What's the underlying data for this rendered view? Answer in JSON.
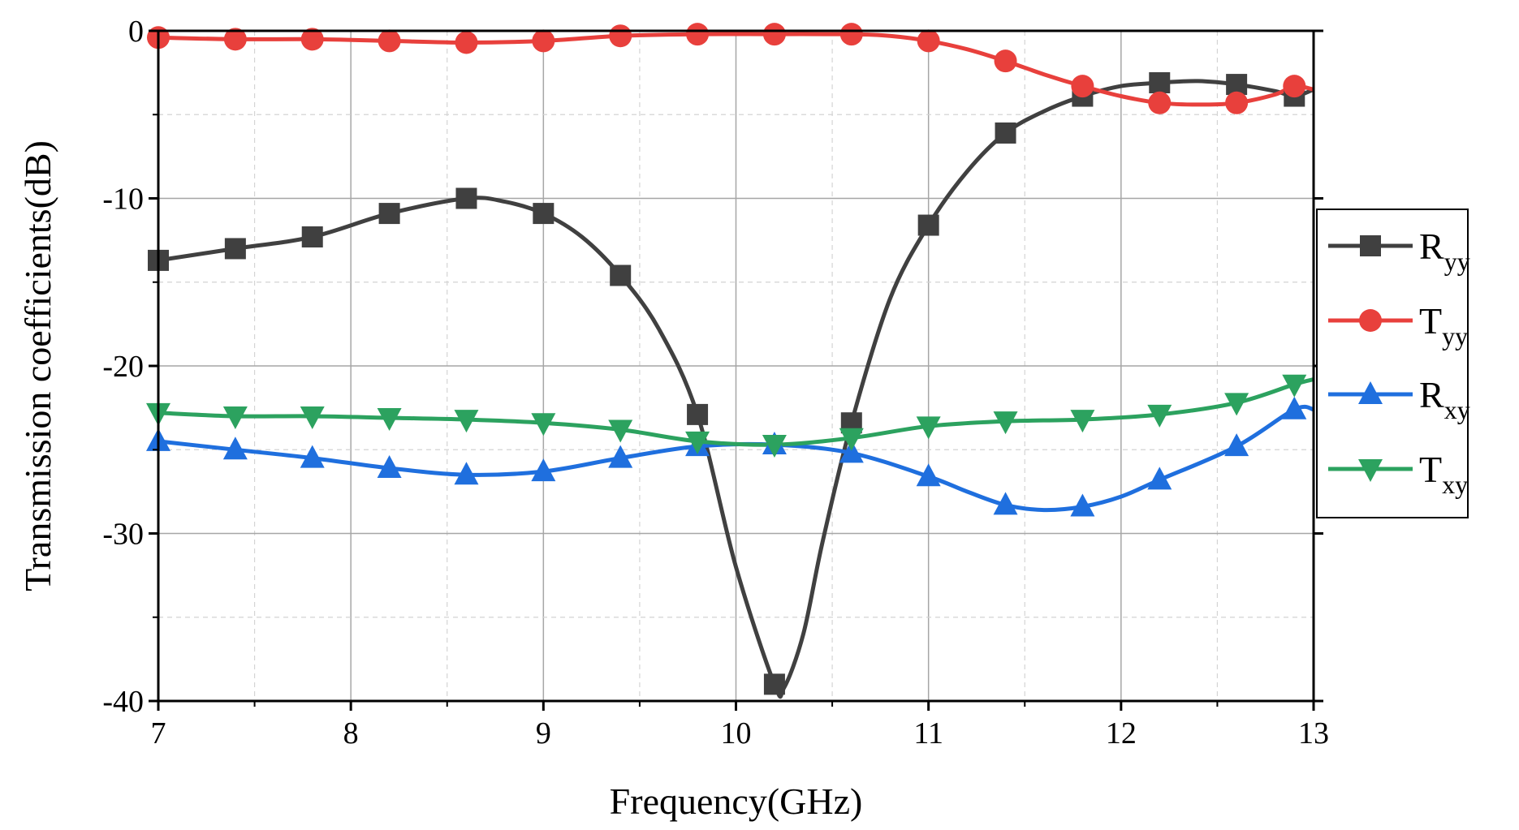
{
  "chart_data": {
    "type": "line",
    "title": "",
    "xlabel": "Frequency(GHz)",
    "ylabel": "Transmission coefficients(dB)",
    "xlim": [
      7,
      13
    ],
    "ylim": [
      -40,
      0
    ],
    "xticks": [
      7,
      8,
      9,
      10,
      11,
      12,
      13
    ],
    "yticks": [
      0,
      -10,
      -20,
      -30,
      -40
    ],
    "xtick_labels": [
      "7",
      "8",
      "9",
      "10",
      "11",
      "12",
      "13"
    ],
    "ytick_labels": [
      "0",
      "-10",
      "-20",
      "-30",
      "-40"
    ],
    "grid": true,
    "legend_position": "right",
    "series": [
      {
        "name": "Ryy",
        "label_main": "R",
        "label_sub": "yy",
        "color": "#404040",
        "marker": "square",
        "x": [
          7.0,
          7.4,
          7.8,
          8.2,
          8.6,
          9.0,
          9.4,
          9.8,
          10.2,
          10.6,
          11.0,
          11.4,
          11.8,
          12.2,
          12.6,
          12.9
        ],
        "y": [
          -13.7,
          -13.0,
          -12.3,
          -10.9,
          -10.0,
          -10.9,
          -14.6,
          -22.9,
          -39.0,
          -23.4,
          -11.6,
          -6.1,
          -3.9,
          -3.1,
          -3.2,
          -3.9
        ],
        "curve_x": [
          7.0,
          7.4,
          7.8,
          8.2,
          8.6,
          8.8,
          9.0,
          9.2,
          9.4,
          9.6,
          9.8,
          10.0,
          10.2,
          10.25,
          10.35,
          10.45,
          10.6,
          10.8,
          11.0,
          11.2,
          11.4,
          11.6,
          11.8,
          12.0,
          12.2,
          12.4,
          12.6,
          12.8,
          12.9,
          13.0
        ],
        "curve_y": [
          -13.7,
          -13.0,
          -12.3,
          -10.9,
          -10.0,
          -10.2,
          -10.9,
          -12.3,
          -14.6,
          -17.8,
          -22.9,
          -32.0,
          -39.0,
          -39.2,
          -36.0,
          -30.5,
          -23.4,
          -16.0,
          -11.6,
          -8.4,
          -6.1,
          -4.8,
          -3.9,
          -3.3,
          -3.1,
          -3.0,
          -3.2,
          -3.6,
          -3.9,
          -3.5
        ]
      },
      {
        "name": "Tyy",
        "label_main": "T",
        "label_sub": "yy",
        "color": "#e8403c",
        "marker": "circle",
        "x": [
          7.0,
          7.4,
          7.8,
          8.2,
          8.6,
          9.0,
          9.4,
          9.8,
          10.2,
          10.6,
          11.0,
          11.4,
          11.8,
          12.2,
          12.6,
          12.9
        ],
        "y": [
          -0.4,
          -0.5,
          -0.5,
          -0.6,
          -0.7,
          -0.6,
          -0.3,
          -0.2,
          -0.2,
          -0.2,
          -0.6,
          -1.8,
          -3.3,
          -4.3,
          -4.3,
          -3.3
        ],
        "curve_x": [
          7.0,
          7.4,
          7.8,
          8.2,
          8.6,
          9.0,
          9.4,
          9.8,
          10.2,
          10.6,
          10.8,
          11.0,
          11.2,
          11.4,
          11.6,
          11.8,
          12.0,
          12.2,
          12.4,
          12.6,
          12.8,
          12.9,
          13.0
        ],
        "curve_y": [
          -0.4,
          -0.5,
          -0.5,
          -0.6,
          -0.7,
          -0.6,
          -0.3,
          -0.2,
          -0.2,
          -0.2,
          -0.3,
          -0.6,
          -1.1,
          -1.8,
          -2.6,
          -3.3,
          -3.9,
          -4.3,
          -4.4,
          -4.3,
          -3.8,
          -3.3,
          -3.5
        ]
      },
      {
        "name": "Rxy",
        "label_main": "R",
        "label_sub": "xy",
        "color": "#1f6fde",
        "marker": "triangle-up",
        "x": [
          7.0,
          7.4,
          7.8,
          8.2,
          8.6,
          9.0,
          9.4,
          9.8,
          10.2,
          10.6,
          11.0,
          11.4,
          11.8,
          12.2,
          12.6,
          12.9
        ],
        "y": [
          -24.5,
          -25.0,
          -25.5,
          -26.1,
          -26.5,
          -26.3,
          -25.5,
          -24.8,
          -24.7,
          -25.2,
          -26.6,
          -28.3,
          -28.4,
          -26.8,
          -24.8,
          -22.6
        ],
        "curve_x": [
          7.0,
          7.4,
          7.8,
          8.2,
          8.6,
          9.0,
          9.4,
          9.8,
          10.2,
          10.6,
          11.0,
          11.2,
          11.4,
          11.6,
          11.8,
          12.0,
          12.2,
          12.6,
          12.9,
          13.0
        ],
        "curve_y": [
          -24.5,
          -25.0,
          -25.5,
          -26.1,
          -26.5,
          -26.3,
          -25.5,
          -24.8,
          -24.7,
          -25.2,
          -26.6,
          -27.5,
          -28.3,
          -28.6,
          -28.4,
          -27.8,
          -26.8,
          -24.8,
          -22.6,
          -22.6
        ]
      },
      {
        "name": "Txy",
        "label_main": "T",
        "label_sub": "xy",
        "color": "#2ca25f",
        "marker": "triangle-down",
        "x": [
          7.0,
          7.4,
          7.8,
          8.2,
          8.6,
          9.0,
          9.4,
          9.8,
          10.2,
          10.6,
          11.0,
          11.4,
          11.8,
          12.2,
          12.6,
          12.9
        ],
        "y": [
          -22.8,
          -23.0,
          -23.0,
          -23.1,
          -23.2,
          -23.4,
          -23.8,
          -24.5,
          -24.7,
          -24.3,
          -23.6,
          -23.3,
          -23.2,
          -22.9,
          -22.2,
          -21.1
        ],
        "curve_x": [
          7.0,
          7.4,
          7.8,
          8.2,
          8.6,
          9.0,
          9.4,
          9.8,
          10.2,
          10.6,
          11.0,
          11.4,
          11.8,
          12.2,
          12.6,
          12.9,
          13.0
        ],
        "curve_y": [
          -22.8,
          -23.0,
          -23.0,
          -23.1,
          -23.2,
          -23.4,
          -23.8,
          -24.5,
          -24.7,
          -24.3,
          -23.6,
          -23.3,
          -23.2,
          -22.9,
          -22.2,
          -21.1,
          -20.8
        ]
      }
    ]
  }
}
